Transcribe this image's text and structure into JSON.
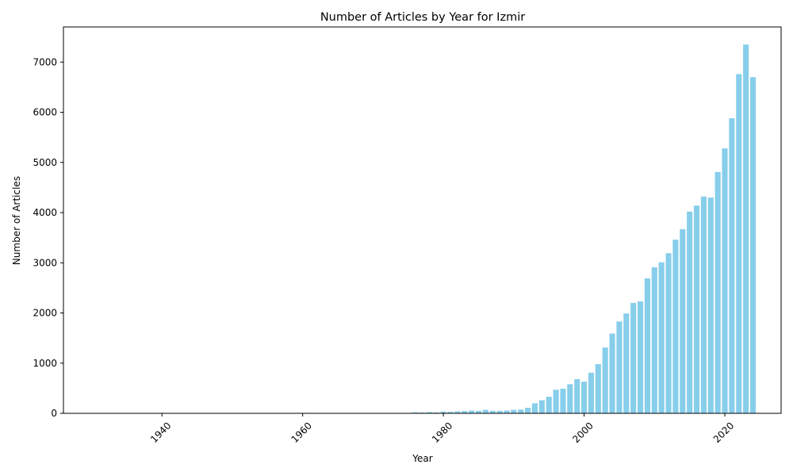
{
  "chart_data": {
    "type": "bar",
    "title": "Number of Articles by Year for Izmir",
    "xlabel": "Year",
    "ylabel": "Number of Articles",
    "xlim": [
      1926,
      2028
    ],
    "ylim": [
      0,
      7700
    ],
    "xticks": [
      1940,
      1960,
      1980,
      2000,
      2020
    ],
    "yticks": [
      0,
      1000,
      2000,
      3000,
      4000,
      5000,
      6000,
      7000
    ],
    "grid": false,
    "legend": "none",
    "bar_color": "#87ceeb",
    "x": [
      1964,
      1966,
      1968,
      1970,
      1972,
      1973,
      1976,
      1977,
      1978,
      1979,
      1980,
      1981,
      1982,
      1983,
      1984,
      1985,
      1986,
      1987,
      1988,
      1989,
      1990,
      1991,
      1992,
      1993,
      1994,
      1995,
      1996,
      1997,
      1998,
      1999,
      2000,
      2001,
      2002,
      2003,
      2004,
      2005,
      2006,
      2007,
      2008,
      2009,
      2010,
      2011,
      2012,
      2013,
      2014,
      2015,
      2016,
      2017,
      2018,
      2019,
      2020,
      2021,
      2022,
      2023,
      2024
    ],
    "values": [
      8,
      6,
      6,
      5,
      6,
      5,
      20,
      15,
      25,
      18,
      35,
      30,
      40,
      45,
      55,
      50,
      70,
      50,
      50,
      55,
      70,
      75,
      110,
      200,
      260,
      330,
      470,
      490,
      580,
      680,
      630,
      810,
      980,
      1310,
      1590,
      1830,
      1990,
      2200,
      2230,
      2690,
      2910,
      3010,
      3190,
      3460,
      3670,
      4020,
      4140,
      4320,
      4300,
      4810,
      5280,
      5880,
      6760,
      7350,
      6700
    ]
  }
}
